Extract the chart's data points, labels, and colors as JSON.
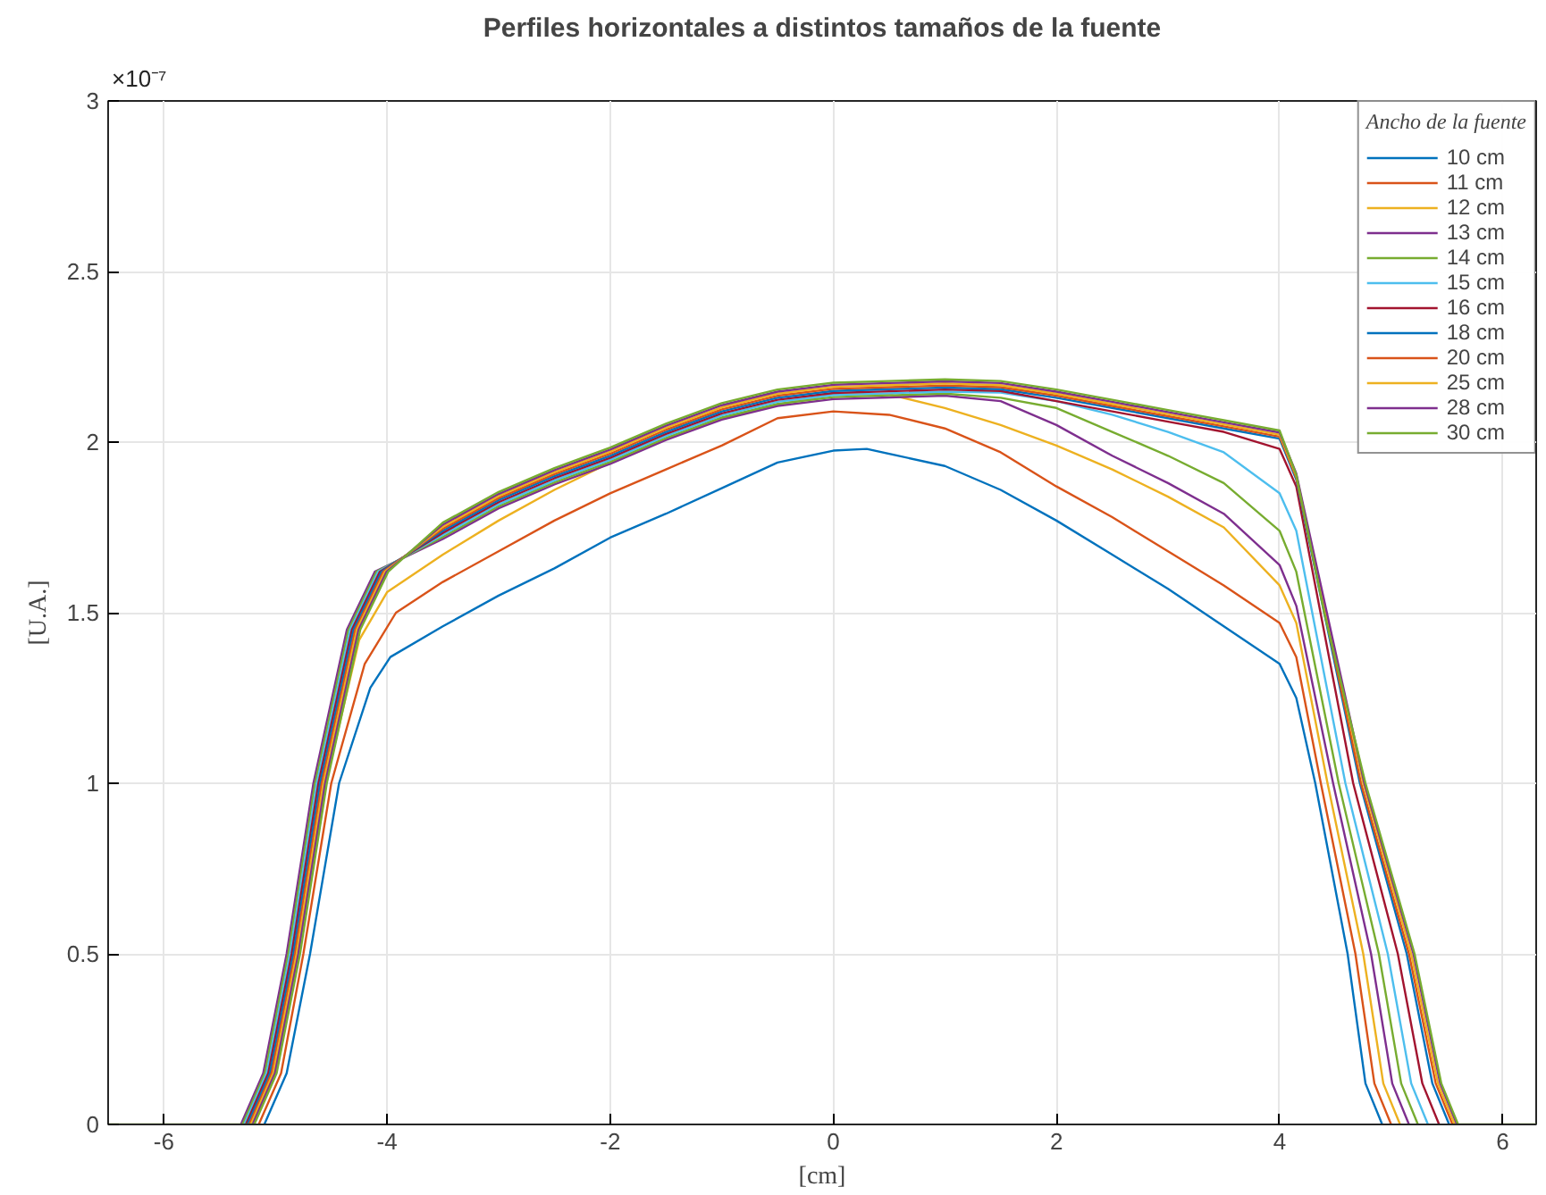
{
  "chart_data": {
    "type": "line",
    "title": "Perfiles horizontales a distintos tamaños de la fuente",
    "xlabel": "[cm]",
    "ylabel": "[U.A.]",
    "legend_title": "Ancho de la fuente",
    "annotations": [
      "×10⁻⁷"
    ],
    "xlim": [
      -6.5,
      6.3
    ],
    "xticks": [
      -6,
      -4,
      -2,
      0,
      2,
      4,
      6
    ],
    "ylim": [
      0,
      3
    ],
    "yticks": [
      0,
      0.5,
      1,
      1.5,
      2,
      2.5,
      3
    ],
    "grid": true,
    "legend": "top right",
    "line_style": "solid",
    "marker": "none",
    "series": [
      {
        "name": "10 cm",
        "color": "#0072bd",
        "x": [
          -5.1,
          -4.9,
          -4.69,
          -4.43,
          -4.15,
          -3.97,
          -3.5,
          -3,
          -2.5,
          -2,
          -1.5,
          -1,
          -0.5,
          0,
          0.3,
          1,
          1.5,
          2,
          2.5,
          3,
          3.5,
          4,
          4.15,
          4.32,
          4.61,
          4.77,
          4.92
        ],
        "values": [
          0,
          0.15,
          0.5,
          1.0,
          1.28,
          1.37,
          1.46,
          1.55,
          1.63,
          1.72,
          1.79,
          1.865,
          1.94,
          1.975,
          1.98,
          1.93,
          1.86,
          1.77,
          1.67,
          1.57,
          1.46,
          1.35,
          1.25,
          1.0,
          0.5,
          0.12,
          0
        ]
      },
      {
        "name": "11 cm",
        "color": "#d95319",
        "x": [
          -5.15,
          -4.95,
          -4.75,
          -4.5,
          -4.2,
          -3.92,
          -3.5,
          -3,
          -2.5,
          -2,
          -1.5,
          -1,
          -0.5,
          0,
          0.5,
          1,
          1.5,
          2,
          2.5,
          3,
          3.5,
          4,
          4.15,
          4.37,
          4.68,
          4.85,
          5.0
        ],
        "values": [
          0,
          0.15,
          0.5,
          1.0,
          1.35,
          1.5,
          1.59,
          1.68,
          1.77,
          1.85,
          1.92,
          1.99,
          2.07,
          2.09,
          2.08,
          2.04,
          1.97,
          1.87,
          1.78,
          1.68,
          1.58,
          1.47,
          1.37,
          1.0,
          0.5,
          0.12,
          0
        ]
      },
      {
        "name": "12 cm",
        "color": "#edb120",
        "x": [
          -5.2,
          -5.0,
          -4.8,
          -4.55,
          -4.25,
          -4.0,
          -3.5,
          -3,
          -2.5,
          -2,
          -1.5,
          -1,
          -0.5,
          0,
          0.5,
          1,
          1.5,
          2,
          2.5,
          3,
          3.5,
          4,
          4.15,
          4.43,
          4.75,
          4.93,
          5.08
        ],
        "values": [
          0,
          0.15,
          0.5,
          1.0,
          1.42,
          1.56,
          1.67,
          1.77,
          1.86,
          1.94,
          2.01,
          2.07,
          2.11,
          2.14,
          2.14,
          2.1,
          2.05,
          1.99,
          1.92,
          1.84,
          1.75,
          1.58,
          1.47,
          1.0,
          0.5,
          0.12,
          0
        ]
      },
      {
        "name": "13 cm",
        "color": "#7e2f8e",
        "x": [
          -5.31,
          -5.11,
          -4.9,
          -4.66,
          -4.36,
          -4.11,
          -3.5,
          -3,
          -2.5,
          -2,
          -1.5,
          -1,
          -0.5,
          0,
          0.5,
          1,
          1.5,
          2,
          2.5,
          3,
          3.5,
          4,
          4.15,
          4.48,
          4.82,
          5.01,
          5.16
        ],
        "values": [
          0,
          0.15,
          0.5,
          1.0,
          1.45,
          1.62,
          1.716,
          1.806,
          1.876,
          1.936,
          2.006,
          2.066,
          2.106,
          2.126,
          2.131,
          2.136,
          2.12,
          2.05,
          1.96,
          1.88,
          1.79,
          1.64,
          1.52,
          1.0,
          0.5,
          0.12,
          0
        ]
      },
      {
        "name": "14 cm",
        "color": "#77ac30",
        "x": [
          -5.295,
          -5.095,
          -4.885,
          -4.645,
          -4.345,
          -4.095,
          -3.5,
          -3,
          -2.5,
          -2,
          -1.5,
          -1,
          -0.5,
          0,
          0.5,
          1,
          1.5,
          2,
          2.5,
          3,
          3.5,
          4,
          4.15,
          4.53,
          4.89,
          5.09,
          5.24
        ],
        "values": [
          0,
          0.15,
          0.5,
          1.0,
          1.45,
          1.62,
          1.722,
          1.812,
          1.882,
          1.942,
          2.012,
          2.072,
          2.112,
          2.132,
          2.137,
          2.142,
          2.13,
          2.1,
          2.03,
          1.96,
          1.88,
          1.74,
          1.62,
          1.0,
          0.5,
          0.12,
          0
        ]
      },
      {
        "name": "15 cm",
        "color": "#4dbeee",
        "x": [
          -5.28,
          -5.08,
          -4.87,
          -4.63,
          -4.33,
          -4.08,
          -3.5,
          -3,
          -2.5,
          -2,
          -1.5,
          -1,
          -0.5,
          0,
          0.5,
          1,
          1.5,
          2,
          2.5,
          3,
          3.5,
          4,
          4.15,
          4.59,
          4.97,
          5.18,
          5.33
        ],
        "values": [
          0,
          0.15,
          0.5,
          1.0,
          1.45,
          1.62,
          1.728,
          1.818,
          1.888,
          1.948,
          2.018,
          2.078,
          2.118,
          2.138,
          2.143,
          2.148,
          2.145,
          2.12,
          2.08,
          2.03,
          1.97,
          1.85,
          1.74,
          1.0,
          0.5,
          0.12,
          0
        ]
      },
      {
        "name": "16 cm",
        "color": "#a2142f",
        "x": [
          -5.265,
          -5.065,
          -4.855,
          -4.615,
          -4.315,
          -4.065,
          -3.5,
          -3,
          -2.5,
          -2,
          -1.5,
          -1,
          -0.5,
          0,
          0.5,
          1,
          1.5,
          2,
          2.5,
          3,
          3.5,
          4,
          4.15,
          4.66,
          5.06,
          5.28,
          5.43
        ],
        "values": [
          0,
          0.15,
          0.5,
          1.0,
          1.45,
          1.62,
          1.734,
          1.824,
          1.894,
          1.954,
          2.024,
          2.084,
          2.124,
          2.144,
          2.149,
          2.154,
          2.15,
          2.12,
          2.09,
          2.06,
          2.03,
          1.98,
          1.87,
          1.0,
          0.5,
          0.12,
          0
        ]
      },
      {
        "name": "18 cm",
        "color": "#0072bd",
        "x": [
          -5.25,
          -5.05,
          -4.84,
          -4.6,
          -4.3,
          -4.05,
          -3.5,
          -3,
          -2.5,
          -2,
          -1.5,
          -1,
          -0.5,
          0,
          0.5,
          1,
          1.5,
          2,
          2.5,
          3,
          3.5,
          4,
          4.15,
          4.72,
          5.14,
          5.37,
          5.52
        ],
        "values": [
          0,
          0.15,
          0.5,
          1.0,
          1.45,
          1.62,
          1.74,
          1.83,
          1.9,
          1.96,
          2.03,
          2.09,
          2.13,
          2.15,
          2.155,
          2.16,
          2.155,
          2.13,
          2.1,
          2.07,
          2.04,
          2.01,
          1.89,
          1.0,
          0.5,
          0.12,
          0
        ]
      },
      {
        "name": "20 cm",
        "color": "#d95319",
        "x": [
          -5.235,
          -5.035,
          -4.825,
          -4.585,
          -4.285,
          -4.035,
          -3.5,
          -3,
          -2.5,
          -2,
          -1.5,
          -1,
          -0.5,
          0,
          0.5,
          1,
          1.5,
          2,
          2.5,
          3,
          3.5,
          4,
          4.15,
          4.73,
          5.16,
          5.4,
          5.55
        ],
        "values": [
          0,
          0.15,
          0.5,
          1.0,
          1.45,
          1.62,
          1.746,
          1.836,
          1.906,
          1.966,
          2.036,
          2.096,
          2.136,
          2.156,
          2.161,
          2.166,
          2.161,
          2.136,
          2.106,
          2.076,
          2.046,
          2.016,
          1.896,
          1.0,
          0.5,
          0.12,
          0
        ]
      },
      {
        "name": "25 cm",
        "color": "#edb120",
        "x": [
          -5.22,
          -5.02,
          -4.81,
          -4.57,
          -4.27,
          -4.02,
          -3.5,
          -3,
          -2.5,
          -2,
          -1.5,
          -1,
          -0.5,
          0,
          0.5,
          1,
          1.5,
          2,
          2.5,
          3,
          3.5,
          4,
          4.15,
          4.75,
          5.18,
          5.42,
          5.57
        ],
        "values": [
          0,
          0.15,
          0.5,
          1.0,
          1.45,
          1.62,
          1.752,
          1.842,
          1.912,
          1.972,
          2.042,
          2.102,
          2.142,
          2.162,
          2.167,
          2.172,
          2.167,
          2.142,
          2.112,
          2.082,
          2.052,
          2.022,
          1.902,
          1.0,
          0.5,
          0.12,
          0
        ]
      },
      {
        "name": "28 cm",
        "color": "#7e2f8e",
        "x": [
          -5.205,
          -5.005,
          -4.795,
          -4.555,
          -4.255,
          -4.005,
          -3.5,
          -3,
          -2.5,
          -2,
          -1.5,
          -1,
          -0.5,
          0,
          0.5,
          1,
          1.5,
          2,
          2.5,
          3,
          3.5,
          4,
          4.15,
          4.76,
          5.2,
          5.44,
          5.59
        ],
        "values": [
          0,
          0.15,
          0.5,
          1.0,
          1.45,
          1.62,
          1.758,
          1.848,
          1.918,
          1.978,
          2.048,
          2.108,
          2.148,
          2.168,
          2.173,
          2.178,
          2.173,
          2.148,
          2.118,
          2.088,
          2.058,
          2.028,
          1.908,
          1.0,
          0.5,
          0.12,
          0
        ]
      },
      {
        "name": "30 cm",
        "color": "#77ac30",
        "x": [
          -6.5,
          -5.19,
          -4.99,
          -4.78,
          -4.54,
          -4.24,
          -3.99,
          -3.5,
          -3,
          -2.5,
          -2,
          -1.5,
          -1,
          -0.5,
          0,
          0.5,
          1,
          1.5,
          2,
          2.5,
          3,
          3.5,
          4,
          4.15,
          4.4,
          4.77,
          5.21,
          5.45,
          5.6,
          6.3
        ],
        "values": [
          0,
          0,
          0.15,
          0.5,
          1.0,
          1.45,
          1.62,
          1.764,
          1.854,
          1.924,
          1.984,
          2.054,
          2.114,
          2.154,
          2.174,
          2.179,
          2.184,
          2.179,
          2.154,
          2.124,
          2.094,
          2.064,
          2.034,
          1.904,
          1.5,
          1.0,
          0.5,
          0.12,
          0,
          0
        ]
      }
    ]
  }
}
